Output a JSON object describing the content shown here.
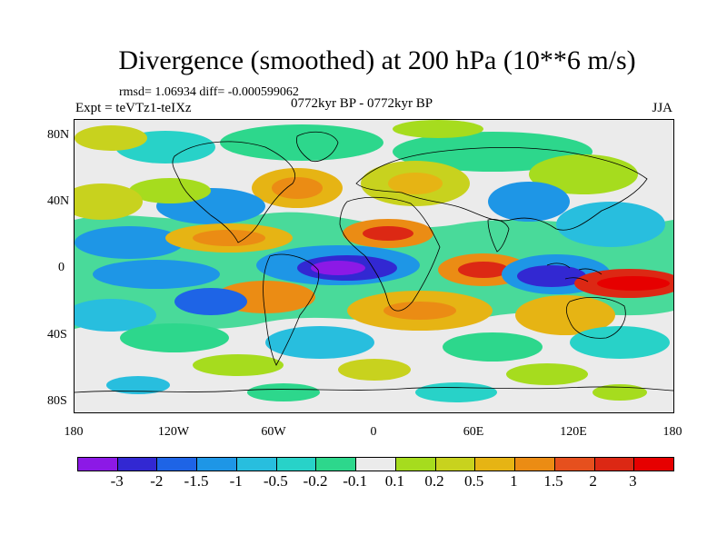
{
  "title": "Divergence (smoothed) at 200 hPa (10**6 m/s)",
  "stats": "rmsd= 1.06934 diff= -0.000599062",
  "expt": "Expt = teVTz1-teIXz",
  "period": "0772kyr BP - 0772kyr BP",
  "season": "JJA",
  "y_axis": [
    "80N",
    "40N",
    "0",
    "40S",
    "80S"
  ],
  "x_axis": [
    "180",
    "120W",
    "60W",
    "0",
    "60E",
    "120E",
    "180"
  ],
  "colorbar": {
    "labels": [
      "-3",
      "-2",
      "-1.5",
      "-1",
      "-0.5",
      "-0.2",
      "-0.1",
      "0.1",
      "0.2",
      "0.5",
      "1",
      "1.5",
      "2",
      "3"
    ],
    "colors": [
      "#8c19e6",
      "#3228d2",
      "#1e64e6",
      "#1e96e6",
      "#28bede",
      "#28d2c8",
      "#2dd78c",
      "#ebebeb",
      "#a6dc1e",
      "#c8d21e",
      "#e6b414",
      "#eb8c14",
      "#e6501e",
      "#dc2814",
      "#e60000"
    ]
  }
}
